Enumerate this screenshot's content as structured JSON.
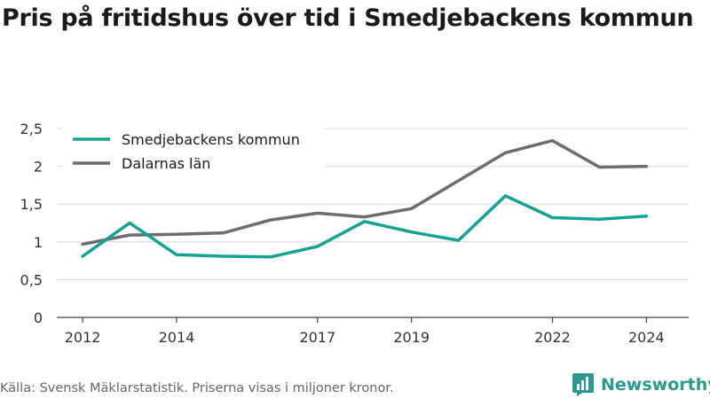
{
  "title": "Pris på fritidshus över tid i Smedjebackens kommun",
  "source": "Källa: Svensk Mäklarstatistik. Priserna visas i miljoner kronor.",
  "brand": {
    "name": "Newsworthy",
    "logo_icon": "bar-chart-icon",
    "color": "#2a9a8e"
  },
  "chart_data": {
    "type": "line",
    "x": [
      2012,
      2013,
      2014,
      2015,
      2016,
      2017,
      2018,
      2019,
      2020,
      2021,
      2022,
      2023,
      2024
    ],
    "x_ticks": [
      "2012",
      "2014",
      "2017",
      "2019",
      "2022",
      "2024"
    ],
    "y_ticks": [
      "0",
      "0,5",
      "1",
      "1,5",
      "2",
      "2,5"
    ],
    "ylim": [
      0,
      2.5
    ],
    "grid": true,
    "legend_position": "top-left",
    "series": [
      {
        "name": "Smedjebackens kommun",
        "color": "#12a392",
        "values": [
          0.81,
          1.25,
          0.83,
          0.81,
          0.8,
          0.94,
          1.27,
          1.13,
          1.02,
          1.61,
          1.32,
          1.3,
          1.34
        ]
      },
      {
        "name": "Dalarnas län",
        "color": "#6d6c72",
        "values": [
          0.97,
          1.09,
          1.1,
          1.12,
          1.29,
          1.38,
          1.33,
          1.44,
          1.81,
          2.18,
          2.34,
          1.99,
          2.0
        ]
      }
    ]
  }
}
